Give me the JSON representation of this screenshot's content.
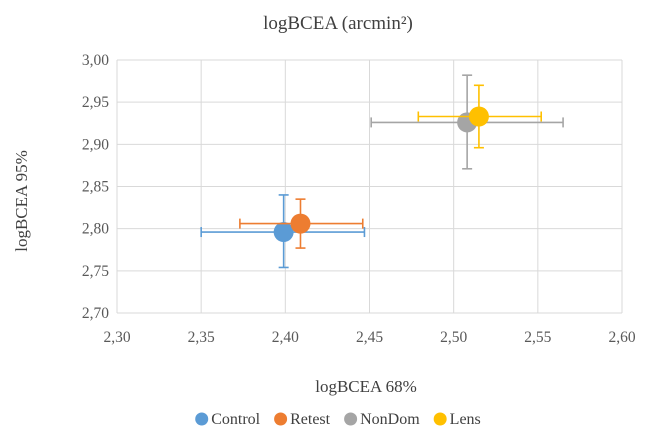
{
  "chart_data": {
    "type": "scatter",
    "title": "logBCEA (arcmin²)",
    "xlabel": "logBCEA 68%",
    "ylabel": "logBCEA 95%",
    "xlim": [
      2.3,
      2.6
    ],
    "ylim": [
      2.7,
      3.0
    ],
    "xticks": [
      2.3,
      2.35,
      2.4,
      2.45,
      2.5,
      2.55,
      2.6
    ],
    "yticks": [
      2.7,
      2.75,
      2.8,
      2.85,
      2.9,
      2.95,
      3.0
    ],
    "xtick_labels": [
      "2,30",
      "2,35",
      "2,40",
      "2,45",
      "2,50",
      "2,55",
      "2,60"
    ],
    "ytick_labels": [
      "2,70",
      "2,75",
      "2,80",
      "2,85",
      "2,90",
      "2,95",
      "3,00"
    ],
    "grid": true,
    "legend_position": "bottom",
    "series": [
      {
        "name": "Control",
        "color": "#5b9bd5",
        "x": 2.399,
        "y": 2.796,
        "x_err": [
          2.35,
          2.447
        ],
        "y_err": [
          2.754,
          2.84
        ]
      },
      {
        "name": "Retest",
        "color": "#ed7d31",
        "x": 2.409,
        "y": 2.806,
        "x_err": [
          2.373,
          2.446
        ],
        "y_err": [
          2.777,
          2.835
        ]
      },
      {
        "name": "NonDom",
        "color": "#a5a5a5",
        "x": 2.508,
        "y": 2.926,
        "x_err": [
          2.451,
          2.565
        ],
        "y_err": [
          2.871,
          2.982
        ]
      },
      {
        "name": "Lens",
        "color": "#ffc000",
        "x": 2.515,
        "y": 2.933,
        "x_err": [
          2.479,
          2.552
        ],
        "y_err": [
          2.896,
          2.97
        ]
      }
    ]
  }
}
